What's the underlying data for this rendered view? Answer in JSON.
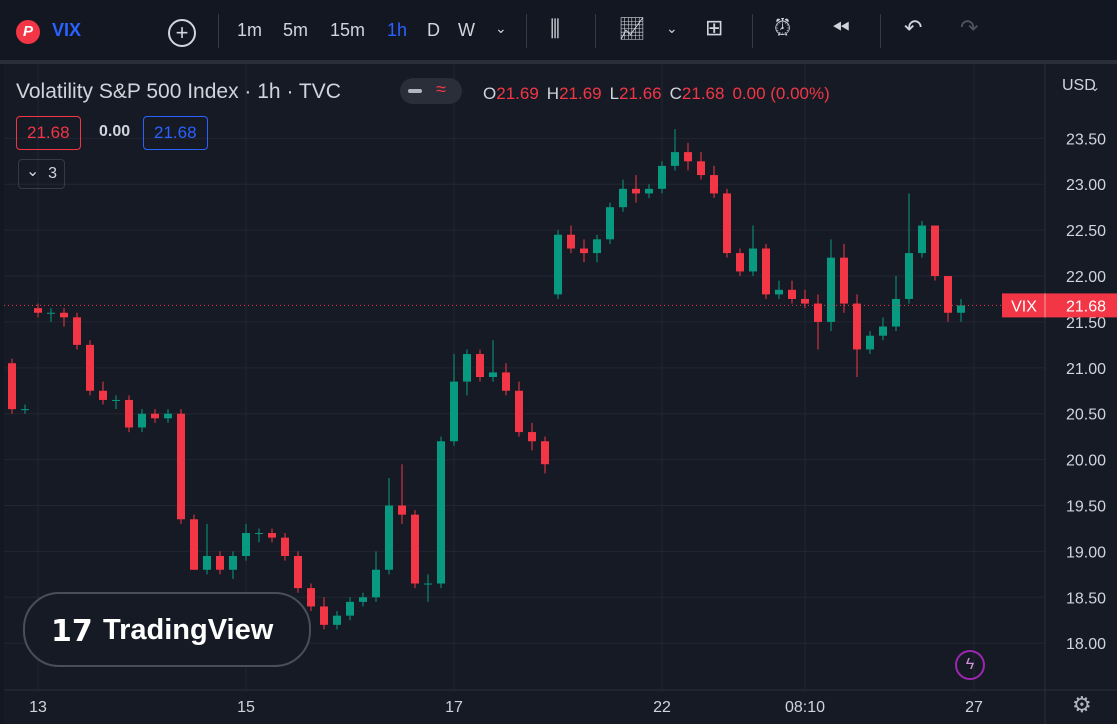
{
  "toolbar": {
    "symbol": "VIX",
    "intervals": [
      "1m",
      "5m",
      "15m",
      "1h",
      "D",
      "W"
    ]
  },
  "header": {
    "title": "Volatility S&P 500 Index · 1h · TVC",
    "ohlc": [
      {
        "k": "O",
        "v": "21.69"
      },
      {
        "k": "H",
        "v": "21.69"
      },
      {
        "k": "L",
        "v": "21.66"
      },
      {
        "k": "C",
        "v": "21.68"
      }
    ],
    "change": "0.00 (0.00%)",
    "sell": "21.68",
    "spread": "0.00",
    "buy": "21.68",
    "indicators": "3"
  },
  "currency": "USD",
  "watermark": "TradingView",
  "chart_data": {
    "type": "candlestick",
    "up_color": "#089981",
    "down_color": "#f23645",
    "grid": true,
    "categories": [
      null,
      null,
      "13",
      null,
      null,
      null,
      null,
      null,
      null,
      null,
      null,
      null,
      null,
      null,
      null,
      null,
      null,
      null,
      "15",
      null,
      null,
      null,
      null,
      null,
      null,
      null,
      null,
      null,
      null,
      null,
      null,
      null,
      null,
      null,
      "17",
      null,
      null,
      null,
      null,
      null,
      null,
      null,
      null,
      null,
      null,
      null,
      null,
      null,
      null,
      null,
      "22",
      null,
      null,
      null,
      null,
      null,
      null,
      null,
      null,
      null,
      null,
      "08:10",
      null,
      null,
      null,
      null,
      null,
      null,
      null,
      null,
      null,
      null,
      null,
      null,
      "27"
    ],
    "open": [
      21.05,
      20.55,
      21.65,
      21.6,
      21.6,
      21.55,
      21.25,
      20.75,
      20.65,
      20.65,
      20.35,
      20.5,
      20.45,
      20.5,
      19.35,
      18.8,
      18.95,
      18.8,
      18.95,
      19.2,
      19.2,
      19.15,
      18.95,
      18.6,
      18.4,
      18.2,
      18.3,
      18.45,
      18.5,
      18.8,
      19.5,
      19.4,
      18.65,
      18.65,
      20.2,
      20.85,
      21.15,
      20.9,
      20.95,
      20.75,
      20.3,
      20.2,
      21.8,
      22.45,
      22.3,
      22.25,
      22.4,
      22.75,
      22.95,
      22.9,
      22.95,
      23.2,
      23.35,
      23.25,
      23.1,
      22.9,
      22.25,
      22.05,
      22.3,
      21.8,
      21.85,
      21.75,
      21.7,
      21.5,
      22.2,
      21.7,
      21.2,
      21.35,
      21.45,
      21.75,
      22.25,
      22.55,
      22.0,
      21.6,
      null
    ],
    "high": [
      21.1,
      20.6,
      21.7,
      21.65,
      21.65,
      21.6,
      21.3,
      20.85,
      20.7,
      20.7,
      20.55,
      20.55,
      20.55,
      20.55,
      19.4,
      19.3,
      19.0,
      19.0,
      19.3,
      19.25,
      19.25,
      19.2,
      19.0,
      18.65,
      18.5,
      18.35,
      18.5,
      18.55,
      19.0,
      19.8,
      19.95,
      19.45,
      18.75,
      20.25,
      21.15,
      21.2,
      21.2,
      21.3,
      21.05,
      20.85,
      20.4,
      20.25,
      22.5,
      22.55,
      22.4,
      22.45,
      22.8,
      23.05,
      23.1,
      23.0,
      23.25,
      23.6,
      23.45,
      23.35,
      23.2,
      22.95,
      22.3,
      22.55,
      22.35,
      21.95,
      21.95,
      21.85,
      21.8,
      22.4,
      22.35,
      21.8,
      21.4,
      21.55,
      22.0,
      22.9,
      22.6,
      22.55,
      22.0,
      21.75,
      null
    ],
    "low": [
      20.5,
      20.5,
      21.55,
      21.5,
      21.45,
      21.2,
      20.7,
      20.6,
      20.55,
      20.3,
      20.3,
      20.4,
      20.4,
      19.3,
      18.8,
      18.75,
      18.75,
      18.7,
      18.9,
      19.1,
      19.1,
      18.9,
      18.55,
      18.35,
      18.15,
      18.15,
      18.25,
      18.4,
      18.45,
      18.75,
      19.3,
      18.6,
      18.45,
      18.6,
      20.15,
      20.7,
      20.85,
      20.85,
      20.7,
      20.25,
      20.1,
      19.85,
      21.75,
      22.25,
      22.15,
      22.15,
      22.35,
      22.7,
      22.8,
      22.85,
      22.9,
      23.15,
      23.15,
      23.05,
      22.85,
      22.2,
      22.0,
      22.0,
      21.75,
      21.75,
      21.7,
      21.65,
      21.2,
      21.4,
      21.6,
      20.9,
      21.15,
      21.3,
      21.4,
      21.7,
      22.2,
      21.95,
      21.5,
      21.5,
      null
    ],
    "close": [
      20.55,
      20.55,
      21.6,
      21.6,
      21.55,
      21.25,
      20.75,
      20.65,
      20.65,
      20.35,
      20.5,
      20.45,
      20.5,
      19.35,
      18.8,
      18.95,
      18.8,
      18.95,
      19.2,
      19.2,
      19.15,
      18.95,
      18.6,
      18.4,
      18.2,
      18.3,
      18.45,
      18.5,
      18.8,
      19.5,
      19.4,
      18.65,
      18.65,
      20.2,
      20.85,
      21.15,
      20.9,
      20.95,
      20.75,
      20.3,
      20.2,
      19.95,
      22.45,
      22.3,
      22.25,
      22.4,
      22.75,
      22.95,
      22.9,
      22.95,
      23.2,
      23.35,
      23.25,
      23.1,
      22.9,
      22.25,
      22.05,
      22.3,
      21.8,
      21.85,
      21.75,
      21.7,
      21.5,
      22.2,
      21.7,
      21.2,
      21.35,
      21.45,
      21.75,
      22.25,
      22.55,
      22.0,
      21.6,
      21.68,
      null
    ],
    "ylim": [
      17.49,
      24.31
    ],
    "yticks": [
      {
        "value": 18,
        "label": "18.00"
      },
      {
        "value": 18.5,
        "label": "18.50"
      },
      {
        "value": 19,
        "label": "19.00"
      },
      {
        "value": 19.5,
        "label": "19.50"
      },
      {
        "value": 20,
        "label": "20.00"
      },
      {
        "value": 20.5,
        "label": "20.50"
      },
      {
        "value": 21,
        "label": "21.00"
      },
      {
        "value": 21.5,
        "label": "21.50"
      },
      {
        "value": 22,
        "label": "22.00"
      },
      {
        "value": 22.5,
        "label": "22.50"
      },
      {
        "value": 23,
        "label": "23.00"
      },
      {
        "value": 23.5,
        "label": "23.50"
      }
    ],
    "last_price": {
      "symbol": "VIX",
      "value": 21.68
    }
  }
}
